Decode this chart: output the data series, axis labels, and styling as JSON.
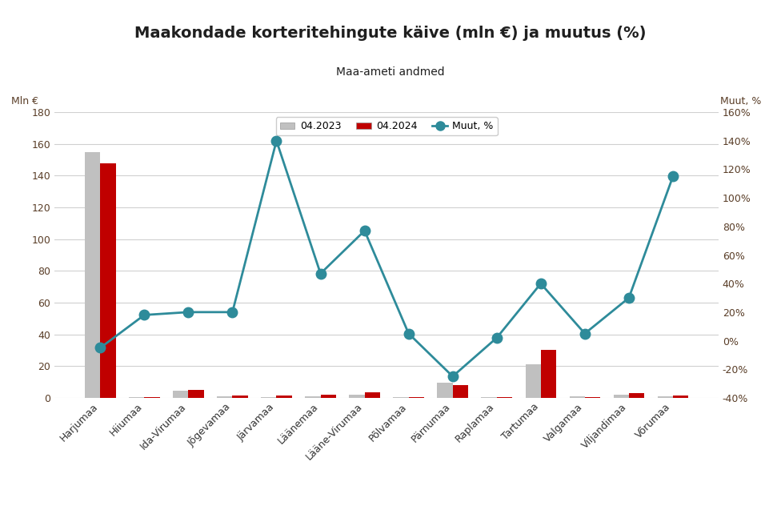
{
  "title": "Maakondade korteritehingute käive (mln €) ja muutus (%)",
  "subtitle": "Maa-ameti andmed",
  "ylabel_left": "Mln €",
  "ylabel_right": "Muut, %",
  "categories": [
    "Harjumaa",
    "Hiiumaa",
    "Ida-Virumaa",
    "Jõgevamaa",
    "Järvamaa",
    "Läänemaa",
    "Lääne-Virumaa",
    "Põlvamaa",
    "Pärnumaa",
    "Raplamaa",
    "Tartumaa",
    "Valgamaa",
    "Viljandimaa",
    "Võrumaa"
  ],
  "values_2023": [
    155,
    0.4,
    4.5,
    0.8,
    0.6,
    1.0,
    2.0,
    0.5,
    9.5,
    0.6,
    21,
    0.8,
    2.2,
    0.7
  ],
  "values_2024": [
    148,
    0.5,
    4.8,
    1.2,
    1.5,
    1.8,
    3.5,
    0.5,
    8.0,
    0.5,
    30,
    0.5,
    3.0,
    1.5
  ],
  "muut_pct": [
    -5,
    18,
    20,
    20,
    140,
    47,
    77,
    5,
    -25,
    2,
    40,
    5,
    30,
    115
  ],
  "bar_color_2023": "#c0c0c0",
  "bar_color_2024": "#c00000",
  "line_color": "#2e8b9a",
  "legend_labels": [
    "04.2023",
    "04.2024",
    "Muut, %"
  ],
  "ylim_left": [
    0,
    180
  ],
  "ylim_right": [
    -40,
    160
  ],
  "yticks_left": [
    0,
    20,
    40,
    60,
    80,
    100,
    120,
    140,
    160,
    180
  ],
  "yticks_right": [
    -40,
    -20,
    0,
    20,
    40,
    60,
    80,
    100,
    120,
    140,
    160
  ],
  "background_color": "#ffffff",
  "grid_color": "#d0d0d0",
  "title_color": "#1f1f1f",
  "axis_label_color": "#5a3e28",
  "tick_color": "#5a3e28"
}
